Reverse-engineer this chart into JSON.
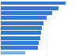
{
  "values": [
    7.1,
    6.3,
    5.6,
    5.0,
    4.7,
    4.5,
    4.4,
    4.3,
    4.2,
    4.1,
    2.7
  ],
  "bar_colors": [
    "#3878c8",
    "#3878c8",
    "#3878c8",
    "#3878c8",
    "#3878c8",
    "#3878c8",
    "#3878c8",
    "#3878c8",
    "#3878c8",
    "#3878c8",
    "#7ab0e8"
  ],
  "xlim": [
    0,
    8.5
  ],
  "background_color": "#ffffff",
  "bar_height": 0.75,
  "grid_color": "#d0d0d0",
  "figsize": [
    1.0,
    0.71
  ],
  "dpi": 100
}
